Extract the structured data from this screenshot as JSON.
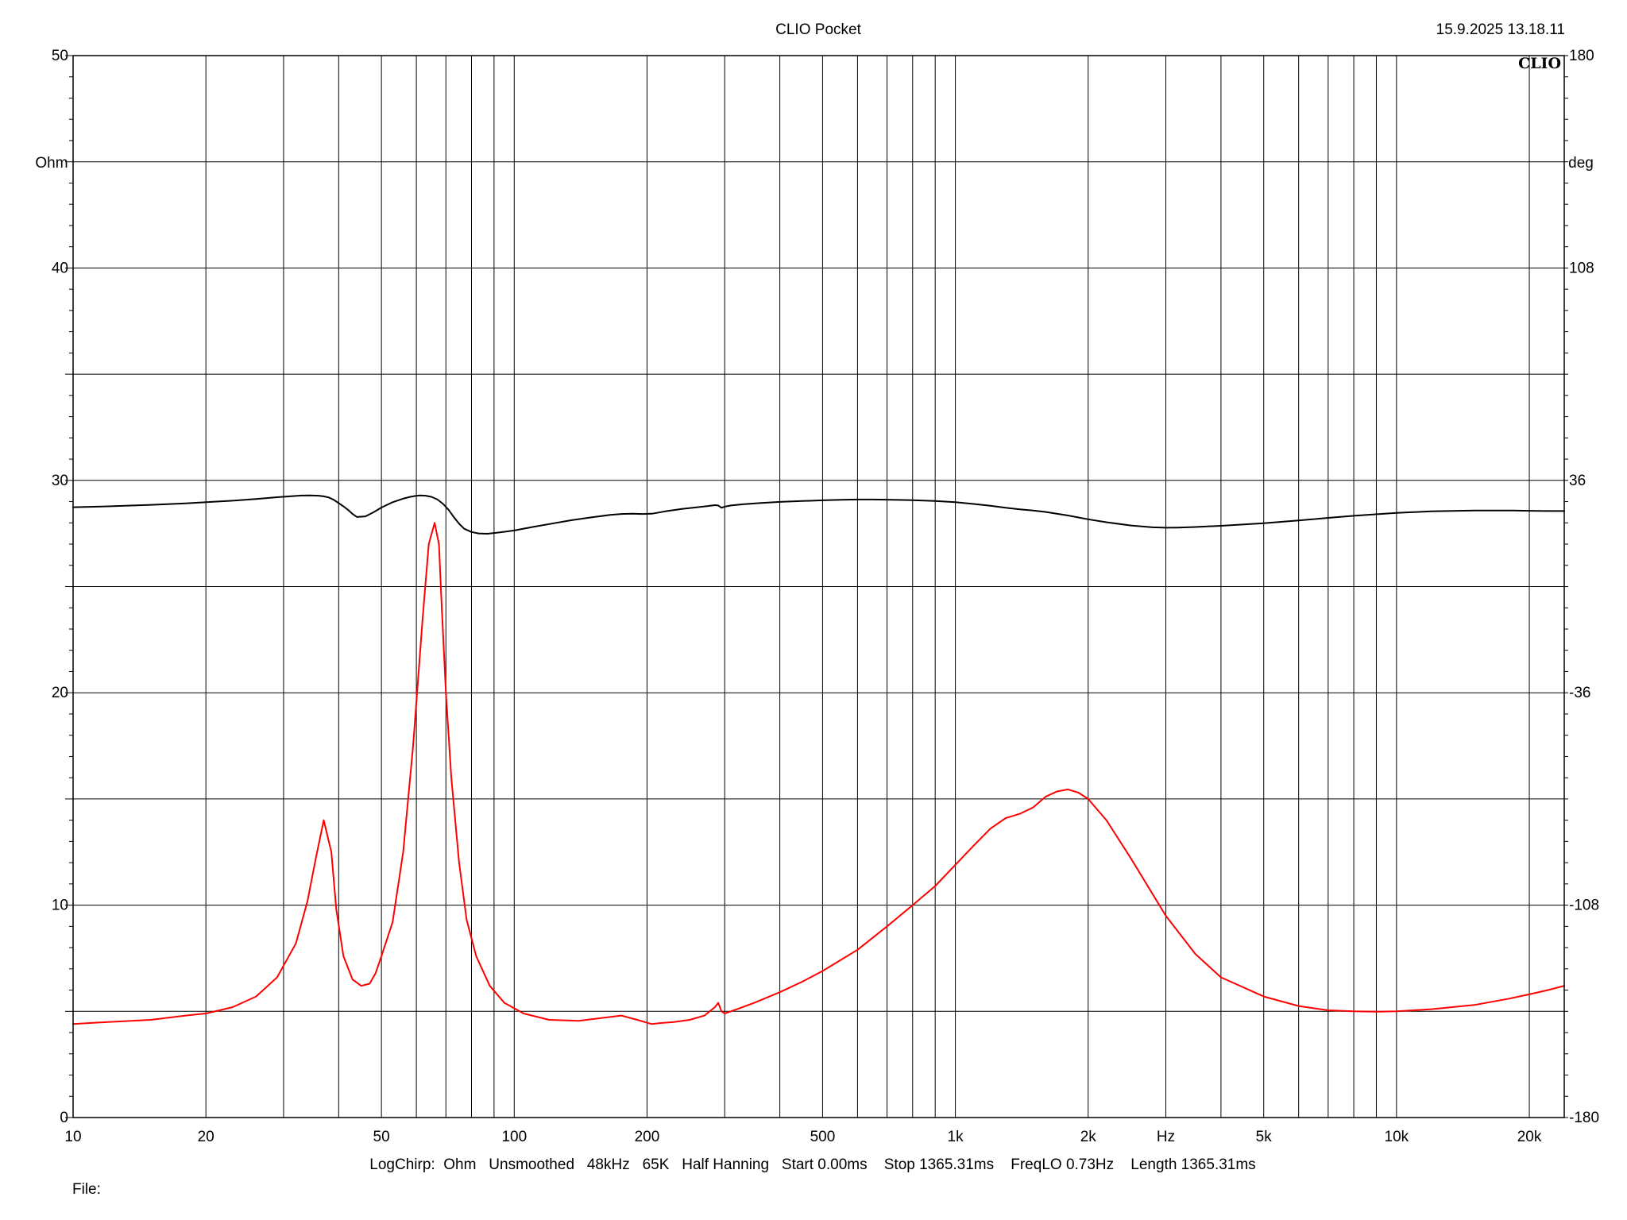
{
  "header": {
    "title": "CLIO Pocket",
    "timestamp": "15.9.2025 13.18.11",
    "logo": "CLIO"
  },
  "footer": {
    "settings": [
      "LogChirp:",
      "Ohm",
      "Unsmoothed",
      "48kHz",
      "65K",
      "Half Hanning",
      "Start 0.00ms",
      "Stop 1365.31ms",
      "FreqLO 0.73Hz",
      "Length 1365.31ms"
    ],
    "file_label": "File:"
  },
  "chart_data": {
    "type": "line",
    "x_scale": "log",
    "xlim": [
      10,
      24000
    ],
    "x_ticks": [
      {
        "value": 10,
        "label": "10"
      },
      {
        "value": 20,
        "label": "20"
      },
      {
        "value": 50,
        "label": "50"
      },
      {
        "value": 100,
        "label": "100"
      },
      {
        "value": 200,
        "label": "200"
      },
      {
        "value": 500,
        "label": "500"
      },
      {
        "value": 1000,
        "label": "1k"
      },
      {
        "value": 2000,
        "label": "2k"
      },
      {
        "value": 5000,
        "label": "5k"
      },
      {
        "value": 10000,
        "label": "10k"
      },
      {
        "value": 20000,
        "label": "20k"
      }
    ],
    "x_unit_label": "Hz",
    "x_unit_at": 3000,
    "grid": true,
    "y_left": {
      "label": "Ohm",
      "ylim": [
        0,
        50
      ],
      "ticks": [
        0,
        10,
        20,
        30,
        40,
        50
      ],
      "grid_step": 5
    },
    "y_right": {
      "label": "deg",
      "ylim": [
        -180,
        180
      ],
      "ticks": [
        -180,
        -108,
        -36,
        36,
        108,
        180
      ]
    },
    "series": [
      {
        "axis": "left",
        "color": "#ff0000",
        "x": [
          10,
          12,
          15,
          18,
          20,
          23,
          26,
          29,
          32,
          34,
          35.5,
          37,
          38.5,
          39.5,
          41,
          43,
          45,
          47,
          48.5,
          50,
          53,
          56,
          59,
          62,
          64,
          66,
          67.5,
          68.5,
          70,
          72,
          75,
          78,
          82,
          88,
          95,
          105,
          120,
          140,
          160,
          175,
          190,
          205,
          215,
          230,
          250,
          270,
          285,
          290,
          295,
          300,
          320,
          350,
          400,
          450,
          500,
          600,
          700,
          800,
          900,
          1000,
          1100,
          1200,
          1300,
          1400,
          1500,
          1600,
          1700,
          1800,
          1900,
          2000,
          2200,
          2500,
          3000,
          3500,
          4000,
          5000,
          6000,
          7000,
          8000,
          9000,
          10000,
          12000,
          15000,
          18000,
          20000,
          22000,
          24000
        ],
        "values": [
          4.4,
          4.5,
          4.6,
          4.8,
          4.9,
          5.2,
          5.7,
          6.6,
          8.2,
          10.2,
          12.2,
          14.0,
          12.5,
          9.8,
          7.6,
          6.5,
          6.2,
          6.3,
          6.8,
          7.6,
          9.2,
          12.5,
          17.5,
          23.5,
          27.0,
          28.0,
          27.0,
          24.0,
          20.0,
          16.0,
          12.0,
          9.3,
          7.6,
          6.2,
          5.4,
          4.9,
          4.6,
          4.55,
          4.7,
          4.8,
          4.6,
          4.4,
          4.45,
          4.5,
          4.6,
          4.8,
          5.2,
          5.4,
          5.0,
          4.9,
          5.1,
          5.4,
          5.9,
          6.4,
          6.9,
          7.9,
          9.0,
          10.0,
          10.9,
          11.9,
          12.8,
          13.6,
          14.1,
          14.3,
          14.6,
          15.1,
          15.35,
          15.45,
          15.3,
          15.0,
          14.0,
          12.2,
          9.5,
          7.7,
          6.6,
          5.7,
          5.25,
          5.05,
          5.0,
          4.98,
          5.0,
          5.1,
          5.3,
          5.6,
          5.8,
          6.0,
          6.2
        ]
      },
      {
        "axis": "right",
        "color": "#000000",
        "x": [
          10,
          12,
          15,
          18,
          20,
          23,
          26,
          29,
          31,
          33,
          34.5,
          36,
          37,
          38,
          39,
          40,
          41,
          42,
          43,
          44,
          46,
          48,
          50,
          53,
          56,
          58,
          59.5,
          61,
          63,
          65,
          67,
          69,
          71,
          73,
          75,
          77,
          80,
          83,
          87,
          92,
          100,
          110,
          120,
          135,
          150,
          165,
          175,
          185,
          195,
          205,
          220,
          240,
          260,
          275,
          285,
          290,
          295,
          300,
          310,
          330,
          360,
          400,
          450,
          500,
          550,
          600,
          650,
          700,
          800,
          900,
          1000,
          1100,
          1200,
          1300,
          1400,
          1500,
          1600,
          1800,
          2000,
          2200,
          2500,
          2800,
          3000,
          3200,
          3500,
          4000,
          5000,
          6000,
          7000,
          8000,
          10000,
          12000,
          15000,
          18000,
          20000,
          22000,
          24000
        ],
        "values": [
          26.9,
          27.2,
          27.7,
          28.2,
          28.6,
          29.1,
          29.7,
          30.3,
          30.6,
          30.85,
          30.9,
          30.8,
          30.6,
          30.2,
          29.4,
          28.3,
          27.2,
          26.0,
          24.6,
          23.6,
          23.8,
          25.2,
          26.8,
          28.6,
          29.8,
          30.4,
          30.7,
          30.9,
          30.8,
          30.4,
          29.5,
          28.0,
          26.0,
          23.5,
          21.3,
          19.6,
          18.5,
          18.0,
          17.9,
          18.3,
          19.0,
          20.2,
          21.2,
          22.5,
          23.5,
          24.3,
          24.6,
          24.7,
          24.6,
          24.7,
          25.5,
          26.3,
          26.9,
          27.3,
          27.6,
          27.5,
          26.7,
          27.1,
          27.5,
          27.9,
          28.3,
          28.7,
          29.0,
          29.25,
          29.4,
          29.5,
          29.5,
          29.45,
          29.3,
          29.0,
          28.6,
          28.0,
          27.4,
          26.7,
          26.2,
          25.8,
          25.3,
          24.1,
          22.8,
          21.8,
          20.7,
          20.1,
          19.95,
          20.0,
          20.2,
          20.6,
          21.5,
          22.4,
          23.3,
          24.0,
          25.0,
          25.5,
          25.8,
          25.8,
          25.7,
          25.6,
          25.6
        ]
      }
    ]
  }
}
